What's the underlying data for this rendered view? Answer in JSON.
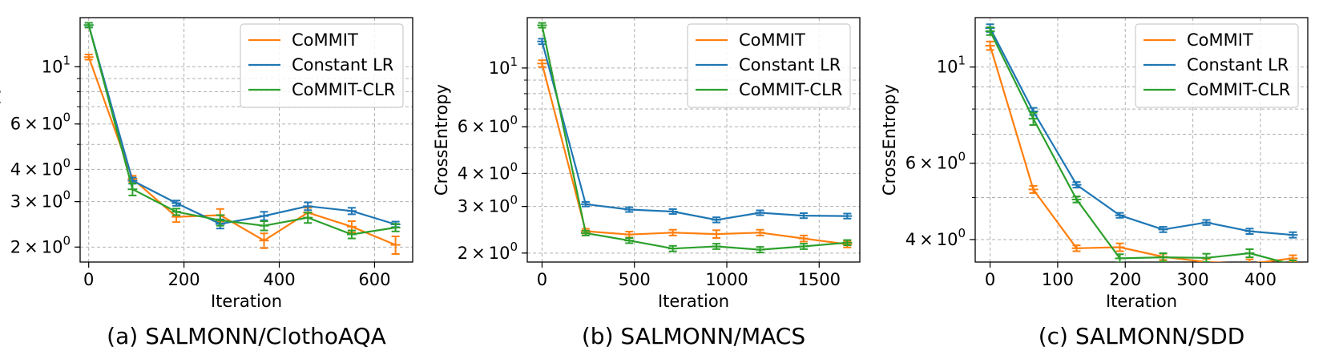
{
  "chart_data": [
    {
      "type": "line",
      "caption": "(a) SALMONN/ClothoAQA",
      "xlabel": "Iteration",
      "ylabel": "CrossEntropy",
      "yscale": "log",
      "xlim": [
        -18,
        680
      ],
      "ylim": [
        1.75,
        15.5
      ],
      "xticks": [
        0,
        200,
        400,
        600
      ],
      "yticks": [
        {
          "value": 2,
          "mantissa": "2",
          "base": "10",
          "exp": "0"
        },
        {
          "value": 3,
          "mantissa": "3",
          "base": "10",
          "exp": "0"
        },
        {
          "value": 4,
          "mantissa": "4",
          "base": "10",
          "exp": "0"
        },
        {
          "value": 6,
          "mantissa": "6",
          "base": "10",
          "exp": "0"
        },
        {
          "value": 10,
          "mantissa": "",
          "base": "10",
          "exp": "1"
        }
      ],
      "grid": true,
      "legend_position": "top-right",
      "series": [
        {
          "name": "CoMMIT",
          "color": "#ff7f0e",
          "x": [
            0,
            92,
            184,
            276,
            368,
            460,
            552,
            644
          ],
          "y": [
            10.9,
            3.68,
            2.62,
            2.66,
            2.12,
            2.72,
            2.4,
            2.04
          ],
          "err": [
            0.25,
            0.1,
            0.12,
            0.15,
            0.14,
            0.12,
            0.12,
            0.16
          ]
        },
        {
          "name": "Constant LR",
          "color": "#1f77b4",
          "x": [
            0,
            92,
            184,
            276,
            368,
            460,
            552,
            644
          ],
          "y": [
            14.5,
            3.62,
            2.96,
            2.46,
            2.64,
            2.88,
            2.76,
            2.45
          ],
          "err": [
            0.3,
            0.1,
            0.07,
            0.1,
            0.1,
            0.1,
            0.08,
            0.06
          ]
        },
        {
          "name": "CoMMIT-CLR",
          "color": "#2ca02c",
          "x": [
            0,
            92,
            184,
            276,
            368,
            460,
            552,
            644
          ],
          "y": [
            14.5,
            3.35,
            2.74,
            2.54,
            2.42,
            2.6,
            2.24,
            2.38
          ],
          "err": [
            0.3,
            0.18,
            0.08,
            0.12,
            0.1,
            0.12,
            0.08,
            0.08
          ]
        }
      ]
    },
    {
      "type": "line",
      "caption": "(b) SALMONN/MACS",
      "xlabel": "Iteration",
      "ylabel": "CrossEntropy",
      "yscale": "log",
      "xlim": [
        -80,
        1720
      ],
      "ylim": [
        1.85,
        15.5
      ],
      "xticks": [
        0,
        500,
        1000,
        1500
      ],
      "yticks": [
        {
          "value": 2,
          "mantissa": "2",
          "base": "10",
          "exp": "0"
        },
        {
          "value": 3,
          "mantissa": "3",
          "base": "10",
          "exp": "0"
        },
        {
          "value": 4,
          "mantissa": "4",
          "base": "10",
          "exp": "0"
        },
        {
          "value": 6,
          "mantissa": "6",
          "base": "10",
          "exp": "0"
        },
        {
          "value": 10,
          "mantissa": "",
          "base": "10",
          "exp": "1"
        }
      ],
      "grid": true,
      "legend_position": "top-right",
      "series": [
        {
          "name": "CoMMIT",
          "color": "#ff7f0e",
          "x": [
            0,
            236,
            472,
            708,
            944,
            1180,
            1416,
            1652
          ],
          "y": [
            10.4,
            2.42,
            2.35,
            2.39,
            2.36,
            2.39,
            2.27,
            2.16
          ],
          "err": [
            0.3,
            0.05,
            0.06,
            0.06,
            0.08,
            0.06,
            0.06,
            0.06
          ]
        },
        {
          "name": "Constant LR",
          "color": "#1f77b4",
          "x": [
            0,
            236,
            472,
            708,
            944,
            1180,
            1416,
            1652
          ],
          "y": [
            12.6,
            3.06,
            2.92,
            2.87,
            2.67,
            2.84,
            2.77,
            2.76
          ],
          "err": [
            0.3,
            0.06,
            0.06,
            0.06,
            0.06,
            0.06,
            0.06,
            0.06
          ]
        },
        {
          "name": "CoMMIT-CLR",
          "color": "#2ca02c",
          "x": [
            0,
            236,
            472,
            708,
            944,
            1180,
            1416,
            1652
          ],
          "y": [
            14.5,
            2.38,
            2.23,
            2.08,
            2.12,
            2.06,
            2.12,
            2.19
          ],
          "err": [
            0.3,
            0.05,
            0.05,
            0.05,
            0.05,
            0.05,
            0.05,
            0.05
          ]
        }
      ]
    },
    {
      "type": "line",
      "caption": "(c) SALMONN/SDD",
      "xlabel": "Iteration",
      "ylabel": "CrossEntropy",
      "yscale": "log",
      "xlim": [
        -22,
        470
      ],
      "ylim": [
        3.55,
        13.0
      ],
      "xticks": [
        0,
        100,
        200,
        300,
        400
      ],
      "yticks": [
        {
          "value": 4,
          "mantissa": "4",
          "base": "10",
          "exp": "0"
        },
        {
          "value": 6,
          "mantissa": "6",
          "base": "10",
          "exp": "0"
        },
        {
          "value": 10,
          "mantissa": "",
          "base": "10",
          "exp": "1"
        }
      ],
      "grid": true,
      "legend_position": "top-right",
      "series": [
        {
          "name": "CoMMIT",
          "color": "#ff7f0e",
          "x": [
            0,
            64,
            128,
            192,
            256,
            320,
            384,
            448
          ],
          "y": [
            11.2,
            5.22,
            3.82,
            3.84,
            3.65,
            3.55,
            3.52,
            3.62
          ],
          "err": [
            0.25,
            0.1,
            0.06,
            0.08,
            0.06,
            0.06,
            0.08,
            0.06
          ]
        },
        {
          "name": "Constant LR",
          "color": "#1f77b4",
          "x": [
            0,
            64,
            128,
            192,
            256,
            320,
            384,
            448
          ],
          "y": [
            12.3,
            7.9,
            5.35,
            4.55,
            4.22,
            4.38,
            4.18,
            4.1
          ],
          "err": [
            0.25,
            0.15,
            0.08,
            0.06,
            0.06,
            0.06,
            0.06,
            0.06
          ]
        },
        {
          "name": "CoMMIT-CLR",
          "color": "#2ca02c",
          "x": [
            0,
            64,
            128,
            192,
            256,
            320,
            384,
            448
          ],
          "y": [
            12.1,
            7.6,
            4.95,
            3.62,
            3.64,
            3.63,
            3.72,
            3.5
          ],
          "err": [
            0.25,
            0.25,
            0.08,
            0.08,
            0.08,
            0.08,
            0.08,
            0.08
          ]
        }
      ]
    }
  ]
}
